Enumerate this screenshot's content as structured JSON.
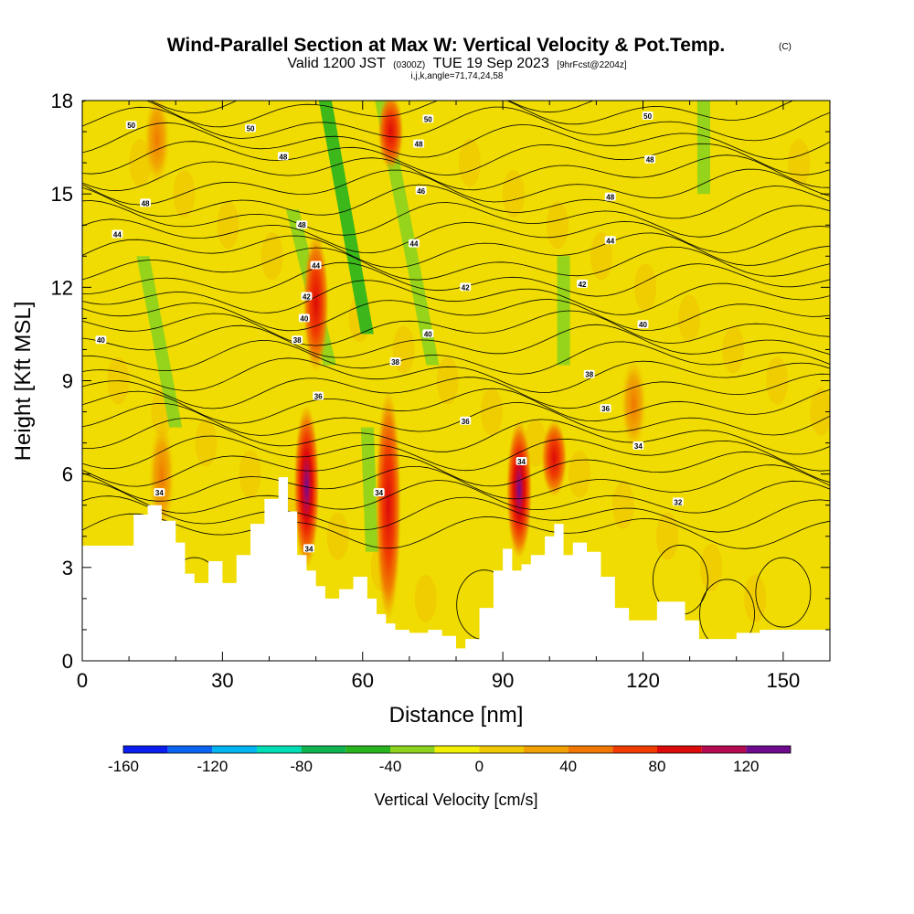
{
  "chart_data": {
    "type": "heatmap",
    "title": "Wind-Parallel Section at Max W: Vertical Velocity & Pot.Temp.",
    "title_mark": "(C)",
    "subtitle_valid": "Valid 1200 JST",
    "subtitle_utc": "(0300Z)",
    "subtitle_date": "TUE 19 Sep 2023",
    "subtitle_fcst": "[9hrFcst@2204z]",
    "subtitle_grid": "i,j,k,angle=71,74,24,58",
    "xlabel": "Distance [nm]",
    "ylabel": "Height [Kft MSL]",
    "xlim": [
      0,
      160
    ],
    "ylim": [
      0,
      18
    ],
    "x_ticks": [
      0,
      30,
      60,
      90,
      120,
      150
    ],
    "x_tick_labels": [
      "0",
      "30",
      "60",
      "90",
      "120",
      "150"
    ],
    "y_ticks": [
      0,
      3,
      6,
      9,
      12,
      15,
      18
    ],
    "y_tick_labels": [
      "0",
      "3",
      "6",
      "9",
      "12",
      "15",
      "18"
    ],
    "colorbar": {
      "title": "Vertical Velocity [cm/s]",
      "min": -160,
      "max": 140,
      "step": 20,
      "tick_values": [
        -160,
        -120,
        -80,
        -40,
        0,
        40,
        80,
        120
      ],
      "tick_labels": [
        "-160",
        "-120",
        "-80",
        "-40",
        "0",
        "40",
        "80",
        "120"
      ],
      "colors": [
        "#0a1ef0",
        "#0a64f0",
        "#00b4f0",
        "#00dcb4",
        "#0fb450",
        "#28b41e",
        "#8cd21e",
        "#f0f000",
        "#f0c800",
        "#f0a000",
        "#f07800",
        "#f03c00",
        "#dc0a0a",
        "#b40a50",
        "#6e0a8c"
      ]
    },
    "terrain_heights_kft": [
      [
        0,
        3.7
      ],
      [
        8,
        3.7
      ],
      [
        11,
        4.7
      ],
      [
        14,
        5.0
      ],
      [
        17,
        4.5
      ],
      [
        20,
        3.8
      ],
      [
        22,
        2.8
      ],
      [
        24,
        2.5
      ],
      [
        27,
        3.2
      ],
      [
        30,
        2.5
      ],
      [
        33,
        3.4
      ],
      [
        36,
        4.4
      ],
      [
        39,
        5.2
      ],
      [
        42,
        5.9
      ],
      [
        44,
        4.8
      ],
      [
        46,
        3.4
      ],
      [
        48,
        2.9
      ],
      [
        50,
        2.4
      ],
      [
        52,
        2.0
      ],
      [
        55,
        2.3
      ],
      [
        58,
        2.7
      ],
      [
        61,
        2.0
      ],
      [
        63,
        1.5
      ],
      [
        65,
        1.2
      ],
      [
        67,
        1.0
      ],
      [
        70,
        0.9
      ],
      [
        74,
        1.0
      ],
      [
        77,
        0.8
      ],
      [
        80,
        0.4
      ],
      [
        82,
        0.7
      ],
      [
        85,
        1.7
      ],
      [
        88,
        2.9
      ],
      [
        90,
        3.6
      ],
      [
        92,
        2.9
      ],
      [
        94,
        3.1
      ],
      [
        96,
        3.4
      ],
      [
        99,
        4.0
      ],
      [
        101,
        4.4
      ],
      [
        103,
        3.4
      ],
      [
        105,
        3.8
      ],
      [
        108,
        3.5
      ],
      [
        111,
        2.7
      ],
      [
        114,
        1.7
      ],
      [
        117,
        1.3
      ],
      [
        120,
        1.3
      ],
      [
        123,
        1.9
      ],
      [
        126,
        1.9
      ],
      [
        129,
        1.3
      ],
      [
        132,
        0.7
      ],
      [
        136,
        0.7
      ],
      [
        140,
        0.9
      ],
      [
        145,
        1.0
      ],
      [
        150,
        1.0
      ],
      [
        156,
        1.0
      ],
      [
        160,
        1.1
      ]
    ],
    "updraft_cores": [
      {
        "x": 17,
        "y_bottom": 4.3,
        "y_top": 7.5,
        "w_max": 60
      },
      {
        "x": 48,
        "y_bottom": 3.2,
        "y_top": 8.0,
        "w_max": 120
      },
      {
        "x": 50,
        "y_bottom": 9.5,
        "y_top": 13.5,
        "w_max": 80
      },
      {
        "x": 65.5,
        "y_bottom": 1.5,
        "y_top": 8.5,
        "w_max": 100
      },
      {
        "x": 66,
        "y_bottom": 16.0,
        "y_top": 18.0,
        "w_max": 80
      },
      {
        "x": 93.5,
        "y_bottom": 3.5,
        "y_top": 7.5,
        "w_max": 140
      },
      {
        "x": 101,
        "y_bottom": 5.5,
        "y_top": 7.5,
        "w_max": 100
      },
      {
        "x": 118,
        "y_bottom": 7.0,
        "y_top": 9.5,
        "w_max": 60
      },
      {
        "x": 16,
        "y_bottom": 15.5,
        "y_top": 18.0,
        "w_max": 60
      }
    ],
    "downdraft_bands": [
      {
        "x_bottom": 20,
        "x_top": 13,
        "y_bottom": 7.5,
        "y_top": 13.0,
        "w_min": -40
      },
      {
        "x_bottom": 53,
        "x_top": 45,
        "y_bottom": 9.5,
        "y_top": 14.5,
        "w_min": -40
      },
      {
        "x_bottom": 61,
        "x_top": 52,
        "y_bottom": 10.5,
        "y_top": 18.0,
        "w_min": -60
      },
      {
        "x_bottom": 75,
        "x_top": 64,
        "y_bottom": 9.5,
        "y_top": 18.0,
        "w_min": -40
      },
      {
        "x_bottom": 62,
        "x_top": 61,
        "y_bottom": 3.5,
        "y_top": 7.5,
        "w_min": -40
      },
      {
        "x_bottom": 103,
        "x_top": 103,
        "y_bottom": 9.5,
        "y_top": 13.0,
        "w_min": -40
      },
      {
        "x_bottom": 133,
        "x_top": 133,
        "y_bottom": 15.0,
        "y_top": 18.0,
        "w_min": -40
      }
    ],
    "theta_contour_levels_C": [
      32,
      34,
      36,
      38,
      40,
      42,
      44,
      46,
      48,
      50
    ],
    "contour_labels": [
      {
        "text": "50",
        "x": 10.5,
        "y": 17.2
      },
      {
        "text": "50",
        "x": 36,
        "y": 17.1
      },
      {
        "text": "50",
        "x": 74,
        "y": 17.4
      },
      {
        "text": "50",
        "x": 121,
        "y": 17.5
      },
      {
        "text": "48",
        "x": 43,
        "y": 16.2
      },
      {
        "text": "48",
        "x": 72,
        "y": 16.6
      },
      {
        "text": "48",
        "x": 121.5,
        "y": 16.1
      },
      {
        "text": "48",
        "x": 13.5,
        "y": 14.7
      },
      {
        "text": "48",
        "x": 47,
        "y": 14.0
      },
      {
        "text": "48",
        "x": 113,
        "y": 14.9
      },
      {
        "text": "46",
        "x": 72.5,
        "y": 15.1
      },
      {
        "text": "44",
        "x": 7.5,
        "y": 13.7
      },
      {
        "text": "44",
        "x": 50,
        "y": 12.7
      },
      {
        "text": "44",
        "x": 71,
        "y": 13.4
      },
      {
        "text": "44",
        "x": 113,
        "y": 13.5
      },
      {
        "text": "42",
        "x": 48,
        "y": 11.7
      },
      {
        "text": "42",
        "x": 82,
        "y": 12.0
      },
      {
        "text": "42",
        "x": 107,
        "y": 12.1
      },
      {
        "text": "40",
        "x": 47.5,
        "y": 11.0
      },
      {
        "text": "40",
        "x": 4,
        "y": 10.3
      },
      {
        "text": "40",
        "x": 74,
        "y": 10.5
      },
      {
        "text": "40",
        "x": 120,
        "y": 10.8
      },
      {
        "text": "38",
        "x": 46,
        "y": 10.3
      },
      {
        "text": "38",
        "x": 67,
        "y": 9.6
      },
      {
        "text": "38",
        "x": 108.5,
        "y": 9.2
      },
      {
        "text": "36",
        "x": 50.5,
        "y": 8.5
      },
      {
        "text": "36",
        "x": 82,
        "y": 7.7
      },
      {
        "text": "36",
        "x": 112,
        "y": 8.1
      },
      {
        "text": "34",
        "x": 94,
        "y": 6.4
      },
      {
        "text": "34",
        "x": 119,
        "y": 6.9
      },
      {
        "text": "34",
        "x": 16.5,
        "y": 5.4
      },
      {
        "text": "34",
        "x": 63.5,
        "y": 5.4
      },
      {
        "text": "34",
        "x": 48.5,
        "y": 3.6
      },
      {
        "text": "32",
        "x": 127.5,
        "y": 5.1
      }
    ]
  }
}
